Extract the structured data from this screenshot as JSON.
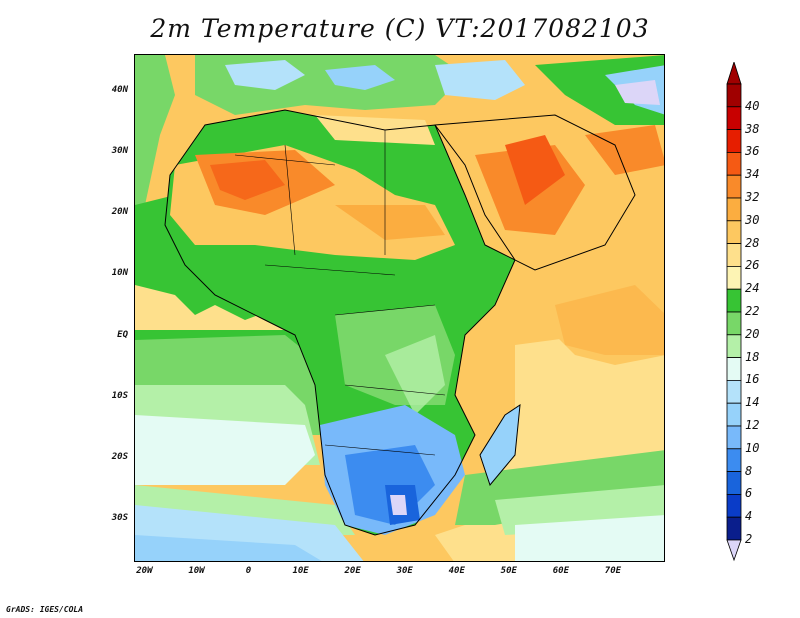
{
  "title": "2m Temperature (C) VT:2017082103",
  "credit": "GrADS: IGES/COLA",
  "map": {
    "region": "Africa and Arabian Peninsula",
    "lon_range": [
      -22,
      80
    ],
    "lat_range": [
      -37,
      46
    ],
    "lat_ticks": [
      {
        "value": 40,
        "label": "40N"
      },
      {
        "value": 30,
        "label": "30N"
      },
      {
        "value": 20,
        "label": "20N"
      },
      {
        "value": 10,
        "label": "10N"
      },
      {
        "value": 0,
        "label": "EQ"
      },
      {
        "value": -10,
        "label": "10S"
      },
      {
        "value": -20,
        "label": "20S"
      },
      {
        "value": -30,
        "label": "30S"
      }
    ],
    "lon_ticks": [
      {
        "value": -20,
        "label": "20W"
      },
      {
        "value": -10,
        "label": "10W"
      },
      {
        "value": 0,
        "label": "0"
      },
      {
        "value": 10,
        "label": "10E"
      },
      {
        "value": 20,
        "label": "20E"
      },
      {
        "value": 30,
        "label": "30E"
      },
      {
        "value": 40,
        "label": "40E"
      },
      {
        "value": 50,
        "label": "50E"
      },
      {
        "value": 60,
        "label": "60E"
      },
      {
        "value": 70,
        "label": "70E"
      }
    ]
  },
  "colorbar": {
    "labels": [
      "40",
      "38",
      "36",
      "34",
      "32",
      "30",
      "28",
      "26",
      "24",
      "22",
      "20",
      "18",
      "16",
      "14",
      "12",
      "10",
      "8",
      "6",
      "4",
      "2"
    ],
    "colors": [
      "#a00000",
      "#c80000",
      "#e61e00",
      "#f55a14",
      "#f98a2a",
      "#fbad40",
      "#fdc860",
      "#fee08c",
      "#fdf4b4",
      "#37c434",
      "#78d768",
      "#b4f0a8",
      "#e4fbf4",
      "#b4e2fa",
      "#96d2fa",
      "#78b9fa",
      "#3c8cf0",
      "#1964dc",
      "#0a3cc8",
      "#0a1e8c"
    ],
    "low_color": "#dcd6f8"
  }
}
